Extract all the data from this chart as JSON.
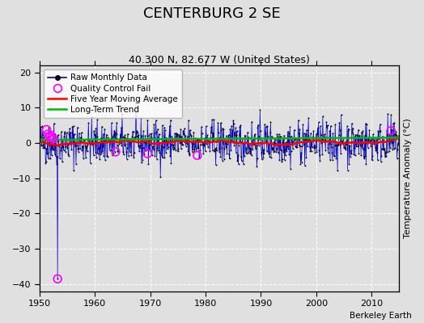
{
  "title": "CENTERBURG 2 SE",
  "subtitle": "40.300 N, 82.677 W (United States)",
  "ylabel": "Temperature Anomaly (°C)",
  "credit": "Berkeley Earth",
  "xlim": [
    1950,
    2015
  ],
  "ylim": [
    -42,
    22
  ],
  "yticks": [
    -40,
    -30,
    -20,
    -10,
    0,
    10,
    20
  ],
  "xticks": [
    1950,
    1960,
    1970,
    1980,
    1990,
    2000,
    2010
  ],
  "bg_color": "#e0e0e0",
  "plot_bg_color": "#e0e0e0",
  "grid_color": "#ffffff",
  "raw_color": "#0000cc",
  "dot_color": "#000000",
  "moving_avg_color": "#ff0000",
  "trend_color": "#00bb00",
  "qc_color": "#ff00ff",
  "start_year": 1950,
  "end_year": 2014,
  "seed": 42,
  "noise_scale": 3.0,
  "qc_fail_times": [
    1951.25,
    1951.5,
    1951.75,
    1952.0,
    1952.25,
    1952.5,
    1953.25,
    1963.75,
    1969.5,
    1978.5,
    2013.5
  ],
  "qc_fail_values": [
    3.8,
    2.5,
    1.8,
    2.2,
    1.5,
    1.2,
    -38.5,
    -2.5,
    -3.0,
    -3.5,
    3.5
  ]
}
